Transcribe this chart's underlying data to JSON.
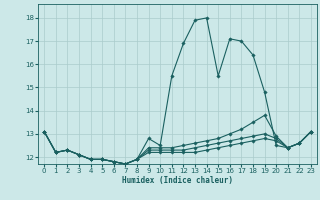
{
  "xlabel": "Humidex (Indice chaleur)",
  "xlim": [
    -0.5,
    23.5
  ],
  "ylim": [
    11.7,
    18.6
  ],
  "xticks": [
    0,
    1,
    2,
    3,
    4,
    5,
    6,
    7,
    8,
    9,
    10,
    11,
    12,
    13,
    14,
    15,
    16,
    17,
    18,
    19,
    20,
    21,
    22,
    23
  ],
  "yticks": [
    12,
    13,
    14,
    15,
    16,
    17,
    18
  ],
  "bg_color": "#cce8e8",
  "grid_color": "#aacccc",
  "line_color": "#1a6060",
  "series": {
    "top": [
      13.1,
      12.2,
      12.3,
      12.1,
      11.9,
      11.9,
      11.8,
      11.7,
      11.9,
      12.8,
      12.5,
      15.5,
      16.9,
      17.9,
      18.0,
      15.5,
      17.1,
      17.0,
      16.4,
      14.8,
      12.5,
      12.4,
      12.6,
      13.1
    ],
    "mid1": [
      13.1,
      12.2,
      12.3,
      12.1,
      11.9,
      11.9,
      11.8,
      11.7,
      11.9,
      12.4,
      12.4,
      12.4,
      12.5,
      12.6,
      12.7,
      12.8,
      13.0,
      13.2,
      13.5,
      13.8,
      12.9,
      12.4,
      12.6,
      13.1
    ],
    "mid2": [
      13.1,
      12.2,
      12.3,
      12.1,
      11.9,
      11.9,
      11.8,
      11.7,
      11.9,
      12.3,
      12.3,
      12.3,
      12.3,
      12.4,
      12.5,
      12.6,
      12.7,
      12.8,
      12.9,
      13.0,
      12.8,
      12.4,
      12.6,
      13.1
    ],
    "bot": [
      13.1,
      12.2,
      12.3,
      12.1,
      11.9,
      11.9,
      11.8,
      11.7,
      11.9,
      12.2,
      12.2,
      12.2,
      12.2,
      12.2,
      12.3,
      12.4,
      12.5,
      12.6,
      12.7,
      12.8,
      12.7,
      12.4,
      12.6,
      13.1
    ]
  },
  "hours": [
    0,
    1,
    2,
    3,
    4,
    5,
    6,
    7,
    8,
    9,
    10,
    11,
    12,
    13,
    14,
    15,
    16,
    17,
    18,
    19,
    20,
    21,
    22,
    23
  ]
}
